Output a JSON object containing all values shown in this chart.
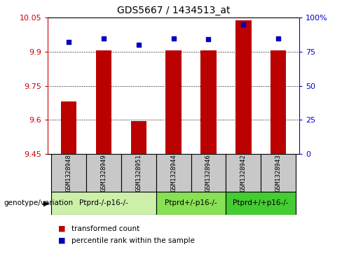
{
  "title": "GDS5667 / 1434513_at",
  "samples": [
    "GSM1328948",
    "GSM1328949",
    "GSM1328951",
    "GSM1328944",
    "GSM1328946",
    "GSM1328942",
    "GSM1328943"
  ],
  "bar_values": [
    9.68,
    9.905,
    9.595,
    9.905,
    9.905,
    10.04,
    9.905
  ],
  "bar_bottom": 9.45,
  "percentile_values": [
    82,
    85,
    80,
    85,
    84,
    95,
    85
  ],
  "ylim_left": [
    9.45,
    10.05
  ],
  "ylim_right": [
    0,
    100
  ],
  "yticks_left": [
    9.45,
    9.6,
    9.75,
    9.9,
    10.05
  ],
  "yticks_right": [
    0,
    25,
    50,
    75,
    100
  ],
  "ytick_labels_left": [
    "9.45",
    "9.6",
    "9.75",
    "9.9",
    "10.05"
  ],
  "ytick_labels_right": [
    "0",
    "25",
    "50",
    "75",
    "100%"
  ],
  "bar_color": "#bb0000",
  "dot_color": "#0000bb",
  "groups": [
    {
      "label": "Ptprd-/-p16-/-",
      "indices": [
        0,
        1,
        2
      ],
      "color": "#ccf0aa"
    },
    {
      "label": "Ptprd+/-p16-/-",
      "indices": [
        3,
        4
      ],
      "color": "#88e055"
    },
    {
      "label": "Ptprd+/+p16-/-",
      "indices": [
        5,
        6
      ],
      "color": "#44cc33"
    }
  ],
  "legend_items": [
    {
      "label": "transformed count",
      "color": "#bb0000"
    },
    {
      "label": "percentile rank within the sample",
      "color": "#0000bb"
    }
  ],
  "bar_width": 0.45,
  "grid_color": "#000000",
  "sample_bg_color": "#c8c8c8",
  "genotype_label": "genotype/variation",
  "left_tick_color": "#cc0000",
  "right_tick_color": "#0000cc"
}
